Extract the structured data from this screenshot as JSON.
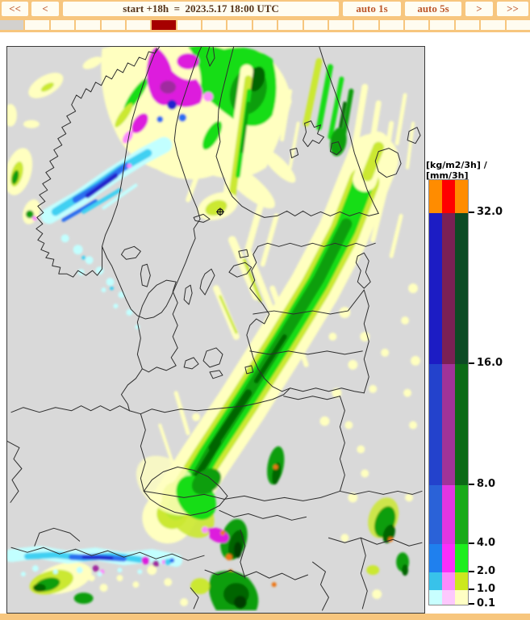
{
  "toolbar": {
    "background": "#f7c67e",
    "buttons": [
      {
        "id": "rewind",
        "label": "<<"
      },
      {
        "id": "step-back",
        "label": "<"
      },
      {
        "id": "time-title",
        "label": "start +18h  =  2023.5.17 18:00 UTC"
      },
      {
        "id": "auto-1s",
        "label": "auto 1s"
      },
      {
        "id": "auto-5s",
        "label": "auto 5s"
      },
      {
        "id": "step-forward",
        "label": ">"
      },
      {
        "id": "fast-forward",
        "label": ">>"
      }
    ]
  },
  "timeline": {
    "segment_count": 21,
    "active_index": 6,
    "past_index": 0,
    "active_color": "#a60000",
    "past_color": "#d3d1ce",
    "future_color": "#fffcf0"
  },
  "legend": {
    "title": "[kg/m2/3h] / [mm/3h]",
    "ticks": [
      "32.0",
      "16.0",
      "8.0",
      "4.0",
      "2.0",
      "1.0",
      "0.1"
    ],
    "rows": [
      {
        "colors": [
          "#ff8c00",
          "#ff0000",
          "#ff8c00"
        ]
      },
      {
        "colors": [
          "#1c1cc4",
          "#7a2054",
          "#0d4a24"
        ]
      },
      {
        "colors": [
          "#2342cc",
          "#a03398",
          "#0c6a16"
        ]
      },
      {
        "colors": [
          "#2a62d8",
          "#e236e2",
          "#1aaa1a"
        ]
      },
      {
        "colors": [
          "#1f80ee",
          "#fb2efb",
          "#1dee1d"
        ]
      },
      {
        "colors": [
          "#38c2ea",
          "#fc8afc",
          "#cce81e"
        ]
      },
      {
        "colors": [
          "#c8ffff",
          "#fdc8fd",
          "#ffffc4"
        ]
      }
    ]
  },
  "map": {
    "background": "#d9d9d9",
    "border_color": "#2e2e2e"
  }
}
